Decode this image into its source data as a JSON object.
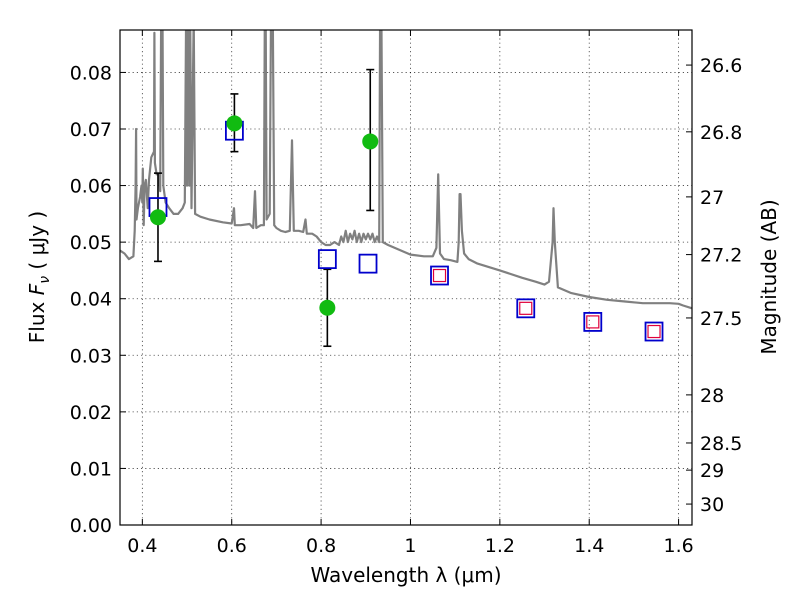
{
  "chart_data": {
    "type": "scatter",
    "xlabel": "Wavelength  λ (μm)",
    "ylabel_prefix": "Flux  ",
    "ylabel_symbol": "F",
    "ylabel_sub": "ν",
    "ylabel_suffix": "  ( μJy )",
    "y2label": "Magnitude (AB)",
    "xlim": [
      0.35,
      1.63
    ],
    "ylim": [
      0.0,
      0.0875
    ],
    "xticks": [
      0.4,
      0.6,
      0.8,
      1.0,
      1.2,
      1.4,
      1.6
    ],
    "xtick_labels": [
      "0.4",
      "0.6",
      "0.8",
      "1",
      "1.2",
      "1.4",
      "1.6"
    ],
    "yticks": [
      0.0,
      0.01,
      0.02,
      0.03,
      0.04,
      0.05,
      0.06,
      0.07,
      0.08
    ],
    "ytick_labels": [
      "0.00",
      "0.01",
      "0.02",
      "0.03",
      "0.04",
      "0.05",
      "0.06",
      "0.07",
      "0.08"
    ],
    "y2ticks": [
      {
        "label": "26.6",
        "flux": 0.0813
      },
      {
        "label": "26.8",
        "flux": 0.0695
      },
      {
        "label": "27",
        "flux": 0.058
      },
      {
        "label": "27.2",
        "flux": 0.0478
      },
      {
        "label": "27.5",
        "flux": 0.0366
      },
      {
        "label": "28",
        "flux": 0.023
      },
      {
        "label": "28.5",
        "flux": 0.0145
      },
      {
        "label": "29",
        "flux": 0.0097
      },
      {
        "label": "30",
        "flux": 0.0037
      }
    ],
    "grid": true,
    "model_photometry": [
      {
        "x": 0.435,
        "y": 0.0562,
        "inner": false
      },
      {
        "x": 0.606,
        "y": 0.0697,
        "inner": false
      },
      {
        "x": 0.814,
        "y": 0.047,
        "inner": false
      },
      {
        "x": 0.905,
        "y": 0.0462,
        "inner": false
      },
      {
        "x": 1.065,
        "y": 0.0441,
        "inner": true
      },
      {
        "x": 1.258,
        "y": 0.0383,
        "inner": true
      },
      {
        "x": 1.408,
        "y": 0.0359,
        "inner": true
      },
      {
        "x": 1.545,
        "y": 0.0342,
        "inner": true
      }
    ],
    "observed_photometry": [
      {
        "x": 0.435,
        "y": 0.0544,
        "yerr_low": 0.0078,
        "yerr_high": 0.0078
      },
      {
        "x": 0.606,
        "y": 0.071,
        "yerr_low": 0.005,
        "yerr_high": 0.0052
      },
      {
        "x": 0.814,
        "y": 0.0384,
        "yerr_low": 0.0068,
        "yerr_high": 0.0068
      },
      {
        "x": 0.91,
        "y": 0.0678,
        "yerr_low": 0.0122,
        "yerr_high": 0.0127
      }
    ],
    "sed_spectrum": [
      [
        0.35,
        0.0485
      ],
      [
        0.36,
        0.048
      ],
      [
        0.37,
        0.047
      ],
      [
        0.38,
        0.0475
      ],
      [
        0.383,
        0.052
      ],
      [
        0.385,
        0.06
      ],
      [
        0.386,
        0.07
      ],
      [
        0.387,
        0.054
      ],
      [
        0.39,
        0.056
      ],
      [
        0.395,
        0.058
      ],
      [
        0.398,
        0.06
      ],
      [
        0.4,
        0.057
      ],
      [
        0.401,
        0.063
      ],
      [
        0.403,
        0.053
      ],
      [
        0.405,
        0.06
      ],
      [
        0.408,
        0.061
      ],
      [
        0.412,
        0.056
      ],
      [
        0.415,
        0.061
      ],
      [
        0.42,
        0.065
      ],
      [
        0.426,
        0.066
      ],
      [
        0.427,
        0.087
      ],
      [
        0.428,
        0.064
      ],
      [
        0.432,
        0.062
      ],
      [
        0.437,
        0.062
      ],
      [
        0.44,
        0.059
      ],
      [
        0.442,
        0.088
      ],
      [
        0.445,
        0.09
      ],
      [
        0.447,
        0.06
      ],
      [
        0.452,
        0.057
      ],
      [
        0.46,
        0.056
      ],
      [
        0.47,
        0.055
      ],
      [
        0.48,
        0.055
      ],
      [
        0.49,
        0.056
      ],
      [
        0.495,
        0.057
      ],
      [
        0.498,
        0.09
      ],
      [
        0.5,
        0.06
      ],
      [
        0.503,
        0.09
      ],
      [
        0.505,
        0.06
      ],
      [
        0.507,
        0.09
      ],
      [
        0.51,
        0.056
      ],
      [
        0.515,
        0.09
      ],
      [
        0.518,
        0.055
      ],
      [
        0.53,
        0.0545
      ],
      [
        0.55,
        0.054
      ],
      [
        0.58,
        0.0535
      ],
      [
        0.6,
        0.0533
      ],
      [
        0.605,
        0.056
      ],
      [
        0.607,
        0.053
      ],
      [
        0.62,
        0.053
      ],
      [
        0.64,
        0.0532
      ],
      [
        0.648,
        0.0525
      ],
      [
        0.652,
        0.059
      ],
      [
        0.655,
        0.0525
      ],
      [
        0.665,
        0.053
      ],
      [
        0.672,
        0.053
      ],
      [
        0.674,
        0.09
      ],
      [
        0.676,
        0.09
      ],
      [
        0.678,
        0.054
      ],
      [
        0.685,
        0.055
      ],
      [
        0.688,
        0.09
      ],
      [
        0.692,
        0.09
      ],
      [
        0.695,
        0.053
      ],
      [
        0.7,
        0.0525
      ],
      [
        0.71,
        0.052
      ],
      [
        0.72,
        0.0518
      ],
      [
        0.73,
        0.052
      ],
      [
        0.735,
        0.068
      ],
      [
        0.739,
        0.052
      ],
      [
        0.75,
        0.052
      ],
      [
        0.76,
        0.0518
      ],
      [
        0.765,
        0.054
      ],
      [
        0.768,
        0.0515
      ],
      [
        0.78,
        0.0515
      ],
      [
        0.79,
        0.051
      ],
      [
        0.8,
        0.05
      ],
      [
        0.81,
        0.0495
      ],
      [
        0.82,
        0.0495
      ],
      [
        0.83,
        0.05
      ],
      [
        0.84,
        0.0495
      ],
      [
        0.845,
        0.051
      ],
      [
        0.85,
        0.05
      ],
      [
        0.855,
        0.052
      ],
      [
        0.86,
        0.05
      ],
      [
        0.865,
        0.0515
      ],
      [
        0.87,
        0.0505
      ],
      [
        0.875,
        0.052
      ],
      [
        0.88,
        0.05
      ],
      [
        0.885,
        0.0515
      ],
      [
        0.89,
        0.05
      ],
      [
        0.895,
        0.0515
      ],
      [
        0.9,
        0.0505
      ],
      [
        0.905,
        0.0515
      ],
      [
        0.91,
        0.0505
      ],
      [
        0.915,
        0.0515
      ],
      [
        0.92,
        0.05
      ],
      [
        0.925,
        0.051
      ],
      [
        0.93,
        0.05
      ],
      [
        0.932,
        0.09
      ],
      [
        0.935,
        0.09
      ],
      [
        0.938,
        0.05
      ],
      [
        0.95,
        0.0495
      ],
      [
        0.97,
        0.0488
      ],
      [
        1.0,
        0.0478
      ],
      [
        1.03,
        0.0475
      ],
      [
        1.05,
        0.0475
      ],
      [
        1.058,
        0.049
      ],
      [
        1.062,
        0.062
      ],
      [
        1.066,
        0.048
      ],
      [
        1.075,
        0.047
      ],
      [
        1.09,
        0.0468
      ],
      [
        1.105,
        0.0465
      ],
      [
        1.108,
        0.05
      ],
      [
        1.11,
        0.0585
      ],
      [
        1.112,
        0.0585
      ],
      [
        1.115,
        0.052
      ],
      [
        1.12,
        0.048
      ],
      [
        1.13,
        0.047
      ],
      [
        1.15,
        0.0462
      ],
      [
        1.2,
        0.045
      ],
      [
        1.25,
        0.0437
      ],
      [
        1.28,
        0.043
      ],
      [
        1.3,
        0.0425
      ],
      [
        1.31,
        0.043
      ],
      [
        1.318,
        0.05
      ],
      [
        1.32,
        0.056
      ],
      [
        1.323,
        0.05
      ],
      [
        1.33,
        0.042
      ],
      [
        1.36,
        0.041
      ],
      [
        1.4,
        0.0403
      ],
      [
        1.44,
        0.0398
      ],
      [
        1.48,
        0.0395
      ],
      [
        1.52,
        0.0392
      ],
      [
        1.56,
        0.0392
      ],
      [
        1.58,
        0.0392
      ],
      [
        1.6,
        0.0391
      ],
      [
        1.61,
        0.0388
      ],
      [
        1.63,
        0.0383
      ]
    ]
  }
}
